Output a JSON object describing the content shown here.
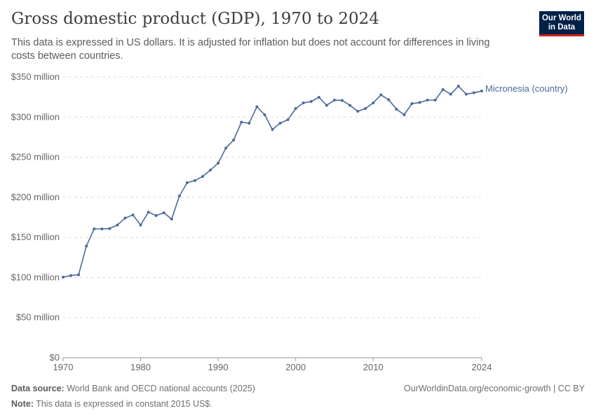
{
  "header": {
    "title": "Gross domestic product (GDP), 1970 to 2024",
    "subtitle": "This data is expressed in US dollars. It is adjusted for inflation but does not account for differences in living costs between countries.",
    "logo": "Our World in Data"
  },
  "footer": {
    "source_label": "Data source:",
    "source": "World Bank and OECD national accounts (2025)",
    "note_label": "Note:",
    "note": "This data is expressed in constant 2015 US$.",
    "link": "OurWorldinData.org/economic-growth | CC BY"
  },
  "chart_data": {
    "type": "line",
    "title": "Gross domestic product (GDP), 1970 to 2024",
    "xlabel": "",
    "ylabel": "",
    "xlim": [
      1970,
      2024
    ],
    "ylim": [
      0,
      350
    ],
    "grid": "horizontal dashed",
    "legend": "inline-right",
    "x_ticks": [
      "1970",
      "1980",
      "1990",
      "2000",
      "2010",
      "2024"
    ],
    "y_ticks": [
      {
        "v": 0,
        "label": "$0"
      },
      {
        "v": 50,
        "label": "$50 million"
      },
      {
        "v": 100,
        "label": "$100 million"
      },
      {
        "v": 150,
        "label": "$150 million"
      },
      {
        "v": 200,
        "label": "$200 million"
      },
      {
        "v": 250,
        "label": "$250 million"
      },
      {
        "v": 300,
        "label": "$300 million"
      },
      {
        "v": 350,
        "label": "$350 million"
      }
    ],
    "series": [
      {
        "name": "Micronesia (country)",
        "color": "#4c6a9c",
        "unit": "million US$",
        "x": [
          1970,
          1971,
          1972,
          1973,
          1974,
          1975,
          1976,
          1977,
          1978,
          1979,
          1980,
          1981,
          1982,
          1983,
          1984,
          1985,
          1986,
          1987,
          1988,
          1989,
          1990,
          1991,
          1992,
          1993,
          1994,
          1995,
          1996,
          1997,
          1998,
          1999,
          2000,
          2001,
          2002,
          2003,
          2004,
          2005,
          2006,
          2007,
          2008,
          2009,
          2010,
          2011,
          2012,
          2013,
          2014,
          2015,
          2016,
          2017,
          2018,
          2019,
          2020,
          2021,
          2022,
          2023,
          2024
        ],
        "values": [
          100.4,
          102.5,
          103.4,
          139.2,
          160.6,
          160.6,
          161,
          165.4,
          174.1,
          178,
          165.4,
          181.5,
          177.2,
          180.7,
          172.8,
          201.6,
          218.2,
          220.8,
          226,
          233.9,
          242.6,
          261.4,
          271.4,
          293.7,
          292.4,
          312.9,
          302.9,
          284.5,
          292.4,
          296.8,
          310.7,
          317.7,
          319.5,
          324.7,
          314.7,
          321.2,
          320.8,
          314.7,
          307.2,
          310.7,
          317.7,
          327.7,
          321.6,
          309.9,
          302.9,
          316.8,
          318.2,
          321.2,
          321.2,
          334.3,
          328.6,
          338.6,
          328.6,
          330.4,
          332.5
        ]
      }
    ]
  }
}
